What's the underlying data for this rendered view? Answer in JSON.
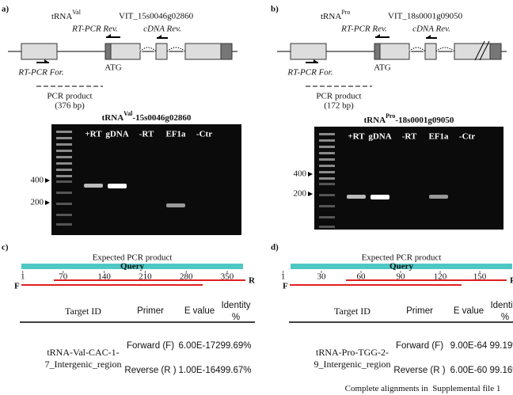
{
  "panels": [
    {
      "label": "a)",
      "gene": "tRNA",
      "gene_sup": "Val",
      "locus": "VIT_15s0046g02860",
      "rt_rev": "RT-PCR Rev.",
      "cdna_rev": "cDNA Rev.",
      "rt_for": "RT-PCR For.",
      "atg": "ATG",
      "product": "PCR product",
      "size": "(376 bp)",
      "gel": {
        "title": "tRNA",
        "title_sup": "Val",
        "title_rest": "-15s0046g02860",
        "lanes": [
          "+RT",
          "gDNA",
          "-RT",
          "EF1a",
          "-Ctr"
        ],
        "markers": [
          "400",
          "200"
        ]
      }
    },
    {
      "label": "b)",
      "gene": "tRNA",
      "gene_sup": "Pro",
      "locus": "VIT_18s0001g09050",
      "rt_rev": "RT-PCR Rev.",
      "cdna_rev": "cDNA Rev.",
      "rt_for": "RT-PCR For.",
      "atg": "ATG",
      "product": "PCR product",
      "size": "(172 bp)",
      "gel": {
        "title": "tRNA",
        "title_sup": "Pro",
        "title_rest": "-18s0001g09050",
        "lanes": [
          "+RT",
          "gDNA",
          "-RT",
          "EF1a",
          "-Ctr"
        ],
        "markers": [
          "400",
          "200"
        ]
      }
    }
  ],
  "alignments": [
    {
      "label": "c)",
      "heading": "Expected PCR product",
      "query": "Query",
      "ticks": [
        1,
        70,
        140,
        210,
        280,
        350
      ],
      "forward": "F",
      "reverse": "R",
      "table": {
        "header": [
          "Target ID",
          "Primer",
          "E value",
          "Identity %"
        ],
        "target": "tRNA-Val-CAC-1-7_Intergenic_region",
        "rows": [
          [
            "Forward (F)",
            "6.00E-172",
            "99.69%"
          ],
          [
            "Reverse (R )",
            "1.00E-164",
            "99.67%"
          ]
        ]
      }
    },
    {
      "label": "d)",
      "heading": "Expected PCR product",
      "query": "Query",
      "ticks": [
        1,
        30,
        60,
        90,
        120,
        150
      ],
      "forward": "F",
      "reverse": "R",
      "table": {
        "header": [
          "Target ID",
          "Primer",
          "E value",
          "Identity %"
        ],
        "target": "tRNA-Pro-TGG-2-9_Intergenic_region",
        "rows": [
          [
            "Forward (F)",
            "9.00E-64",
            "99.19%"
          ],
          [
            "Reverse (R )",
            "6.00E-60",
            "99.16%"
          ]
        ]
      }
    }
  ],
  "footer": "Complete alignments in  Supplemental file 1"
}
